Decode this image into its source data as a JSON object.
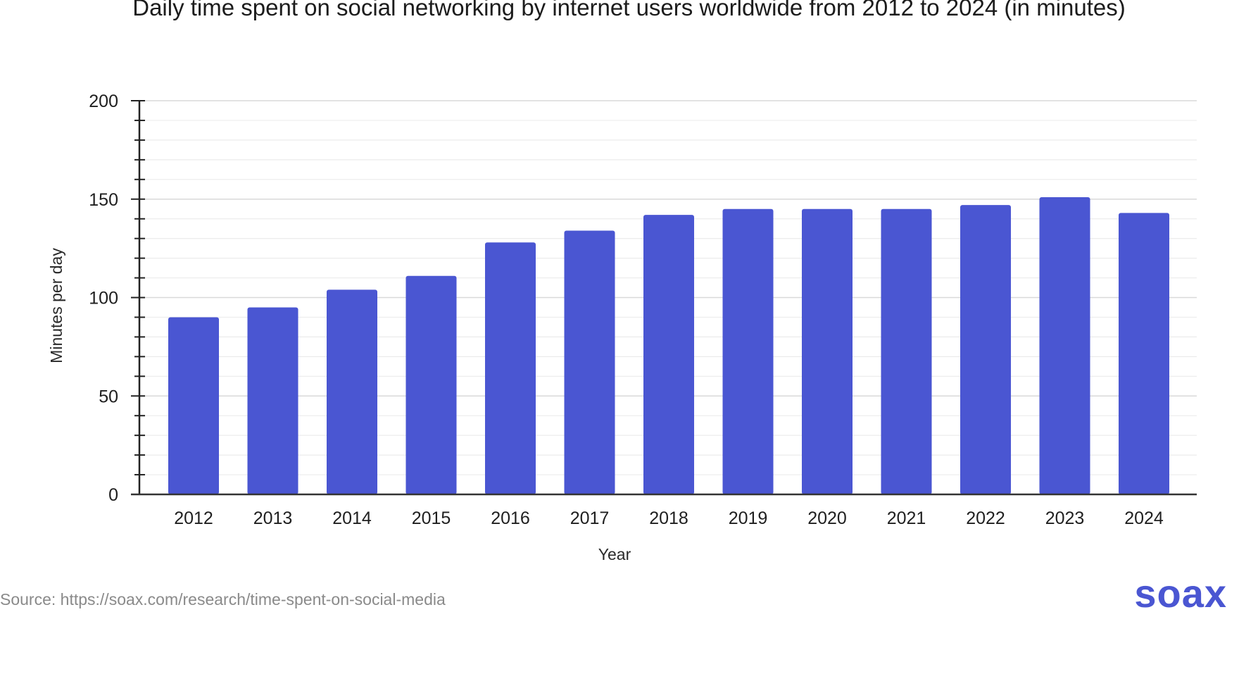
{
  "brand": {
    "logo_text": "soax",
    "accent_color": "#4a56d2"
  },
  "source": {
    "text": "Source: https://soax.com/research/time-spent-on-social-media"
  },
  "chart_data": {
    "type": "bar",
    "title": "Daily time spent on social networking by internet users worldwide from 2012 to 2024 (in minutes)",
    "xlabel": "Year",
    "ylabel": "Minutes per day",
    "categories": [
      "2012",
      "2013",
      "2014",
      "2015",
      "2016",
      "2017",
      "2018",
      "2019",
      "2020",
      "2021",
      "2022",
      "2023",
      "2024"
    ],
    "values": [
      90,
      95,
      104,
      111,
      128,
      134,
      142,
      145,
      145,
      145,
      147,
      151,
      143
    ],
    "ylim": [
      0,
      200
    ],
    "yticks": [
      "0",
      "50",
      "100",
      "150",
      "200"
    ],
    "bar_color": "#4a56d2",
    "grid": true,
    "legend": "none"
  }
}
